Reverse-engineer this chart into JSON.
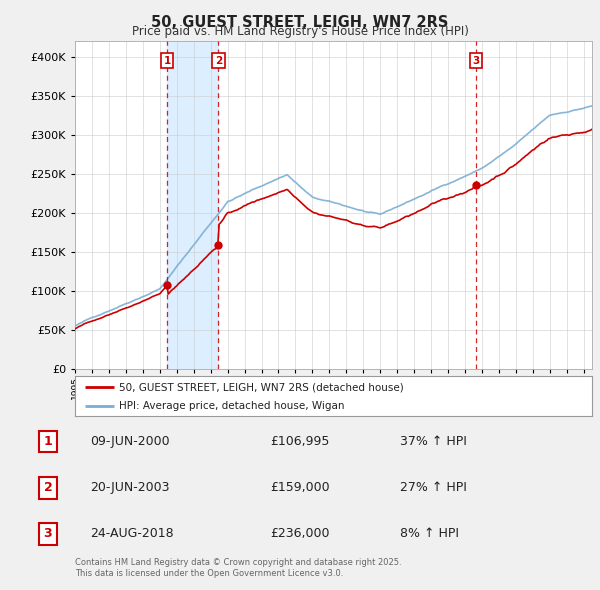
{
  "title": "50, GUEST STREET, LEIGH, WN7 2RS",
  "subtitle": "Price paid vs. HM Land Registry's House Price Index (HPI)",
  "legend_red": "50, GUEST STREET, LEIGH, WN7 2RS (detached house)",
  "legend_blue": "HPI: Average price, detached house, Wigan",
  "sale1_label": "1",
  "sale1_date": "09-JUN-2000",
  "sale1_price": "£106,995",
  "sale1_hpi": "37% ↑ HPI",
  "sale1_year": 2000.44,
  "sale1_value": 106995,
  "sale2_label": "2",
  "sale2_date": "20-JUN-2003",
  "sale2_price": "£159,000",
  "sale2_hpi": "27% ↑ HPI",
  "sale2_year": 2003.46,
  "sale2_value": 159000,
  "sale3_label": "3",
  "sale3_date": "24-AUG-2018",
  "sale3_price": "£236,000",
  "sale3_hpi": "8% ↑ HPI",
  "sale3_year": 2018.65,
  "sale3_value": 236000,
  "footer": "Contains HM Land Registry data © Crown copyright and database right 2025.\nThis data is licensed under the Open Government Licence v3.0.",
  "red_color": "#cc0000",
  "blue_color": "#7aadd4",
  "shade_color": "#ddeeff",
  "vline_color": "#cc0000",
  "background_color": "#f0f0f0",
  "plot_bg": "#ffffff",
  "ylim": [
    0,
    420000
  ],
  "xlim_start": 1995.0,
  "xlim_end": 2025.5
}
